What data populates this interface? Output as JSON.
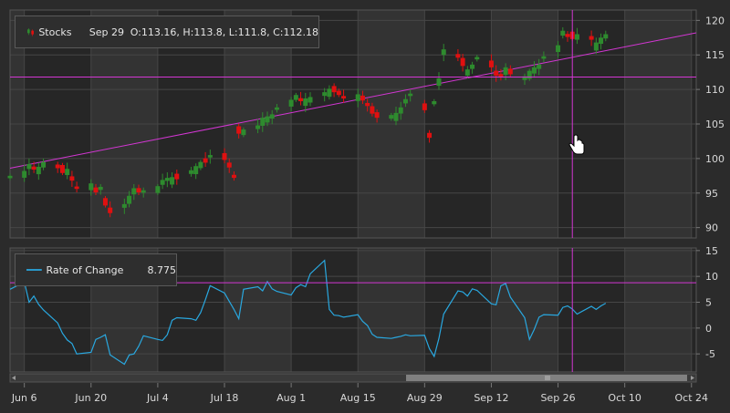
{
  "colors": {
    "background": "#2b2b2b",
    "band_dark": "#262626",
    "band_light": "#333333",
    "grid": "#464646",
    "up_candle": "#2e8b2e",
    "down_candle": "#e01010",
    "crosshair": "#d336d3",
    "roc_line": "#29a8e0",
    "axis_text": "#d8d8d8"
  },
  "crosshair": {
    "date": "Sep 29",
    "price": 111.8,
    "roc": 8.775
  },
  "legend_stock": {
    "icon": "candlestick-icon",
    "series": "Stocks",
    "date": "Sep 29",
    "ohlc": "O:113.16, H:113.8, L:111.8, C:112.18"
  },
  "legend_roc": {
    "series": "Rate of Change",
    "value": "8.775"
  },
  "cursor_icon": "hand-pointer-icon",
  "chart_data": [
    {
      "type": "candlestick",
      "series_name": "Stocks",
      "x_ticks": [
        "Jun 6",
        "Jun 20",
        "Jul 4",
        "Jul 18",
        "Aug 1",
        "Aug 15",
        "Aug 29",
        "Sep 12",
        "Sep 26",
        "Oct 10",
        "Oct 24"
      ],
      "y_ticks": [
        90,
        95,
        100,
        105,
        110,
        115,
        120
      ],
      "ylim": [
        88.5,
        121.5
      ],
      "start_date": "Jun 3",
      "end_date": "Oct 25",
      "trendline": {
        "from": [
          "Jun 3",
          98.6
        ],
        "to": [
          "Oct 25",
          118.2
        ]
      },
      "closes": [
        97.5,
        98.2,
        99.2,
        98.4,
        98.8,
        99.5,
        98.6,
        97.9,
        98.5,
        96.8,
        95.6,
        96.4,
        95.1,
        95.9,
        93.2,
        92.1,
        93.4,
        94.6,
        95.7,
        95.1,
        95.4,
        96.0,
        96.9,
        97.2,
        97.3,
        97.0,
        98.3,
        98.9,
        99.5,
        99.4,
        100.5,
        99.8,
        98.7,
        97.2,
        103.6,
        104.2,
        104.8,
        105.9,
        106.1,
        106.4,
        107.4,
        108.5,
        109.2,
        108.3,
        108.7,
        108.9,
        109.6,
        110.1,
        109.6,
        109.2,
        108.7,
        109.3,
        108.4,
        107.6,
        106.5,
        105.9,
        106.3,
        106.6,
        107.4,
        108.6,
        109.4,
        107.0,
        103.0,
        108.3,
        111.6,
        115.8,
        114.6,
        113.4,
        112.9,
        113.6,
        114.7,
        113.2,
        112.0,
        111.8,
        113.2,
        112.2,
        111.9,
        112.7,
        113.2,
        113.6,
        114.8,
        116.4,
        118.5,
        117.6,
        117.3,
        118.0,
        117.2,
        116.8,
        117.5,
        118.0
      ],
      "trend": [
        1,
        1,
        1,
        -1,
        1,
        1,
        -1,
        -1,
        1,
        -1,
        -1,
        1,
        -1,
        1,
        -1,
        -1,
        1,
        1,
        1,
        -1,
        1,
        1,
        1,
        1,
        1,
        -1,
        1,
        1,
        1,
        -1,
        1,
        -1,
        -1,
        -1,
        -1,
        1,
        1,
        1,
        1,
        1,
        1,
        1,
        1,
        -1,
        1,
        1,
        1,
        1,
        -1,
        -1,
        -1,
        1,
        -1,
        -1,
        -1,
        -1,
        1,
        1,
        1,
        1,
        1,
        -1,
        -1,
        1,
        1,
        1,
        -1,
        -1,
        1,
        1,
        1,
        -1,
        -1,
        -1,
        1,
        -1,
        1,
        1,
        1,
        1,
        1,
        1,
        1,
        -1,
        -1,
        1,
        -1,
        1,
        1,
        1
      ]
    },
    {
      "type": "line",
      "series_name": "Rate of Change",
      "y_ticks": [
        -5,
        0,
        5,
        10,
        15
      ],
      "ylim": [
        -8.5,
        15.5
      ],
      "values": [
        7.5,
        8.9,
        5.0,
        6.2,
        4.6,
        3.5,
        1.0,
        -1.0,
        -2.3,
        -3.0,
        -5.0,
        -4.7,
        -2.2,
        -1.8,
        -1.3,
        -5.2,
        -7.0,
        -5.2,
        -5.0,
        -3.5,
        -1.5,
        -2.2,
        -2.4,
        -1.3,
        1.5,
        2.0,
        1.8,
        1.5,
        3.0,
        5.5,
        8.2,
        6.8,
        5.2,
        3.6,
        1.8,
        7.5,
        8.0,
        7.2,
        9.0,
        7.6,
        7.1,
        6.4,
        7.8,
        8.4,
        8.0,
        10.5,
        13.1,
        3.6,
        2.5,
        2.4,
        2.1,
        2.6,
        1.3,
        0.5,
        -1.2,
        -1.8,
        -2.0,
        -1.8,
        -1.6,
        -1.3,
        -1.5,
        -1.4,
        -4.0,
        -5.5,
        -2.0,
        2.7,
        7.2,
        7.0,
        6.2,
        7.6,
        7.3,
        4.7,
        4.5,
        8.2,
        8.6,
        6.0,
        2.0,
        -2.2,
        -0.3,
        2.1,
        2.6,
        2.5,
        4.0,
        4.3,
        3.7,
        2.7,
        4.2,
        3.6,
        4.3,
        4.8
      ]
    }
  ]
}
